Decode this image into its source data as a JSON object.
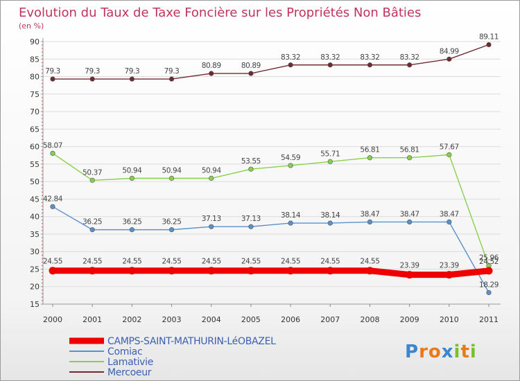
{
  "chart_data": {
    "type": "line",
    "title": "Evolution du Taux de Taxe Foncière sur les Propriétés Non Bâties",
    "unit_label": "(en %)",
    "x": [
      "2000",
      "2001",
      "2002",
      "2003",
      "2004",
      "2005",
      "2006",
      "2007",
      "2008",
      "2009",
      "2010",
      "2011"
    ],
    "ylim": [
      15,
      90
    ],
    "yticks": [
      15,
      20,
      25,
      30,
      35,
      40,
      45,
      50,
      55,
      60,
      65,
      70,
      75,
      80,
      85,
      90
    ],
    "grid": "horizontal",
    "series": [
      {
        "name": "Mercoeur",
        "color": "#6d2a30",
        "values": [
          79.3,
          79.3,
          79.3,
          79.3,
          80.89,
          80.89,
          83.32,
          83.32,
          83.32,
          83.32,
          84.99,
          89.11
        ],
        "labels": [
          "79.3",
          "79.3",
          "79.3",
          "79.3",
          "80.89",
          "80.89",
          "83.32",
          "83.32",
          "83.32",
          "83.32",
          "84.99",
          "89.11"
        ]
      },
      {
        "name": "Lamativie",
        "color": "#88d04b",
        "values": [
          58.07,
          50.37,
          50.94,
          50.94,
          50.94,
          53.55,
          54.59,
          55.71,
          56.81,
          56.81,
          57.67,
          25.96
        ],
        "labels": [
          "58.07",
          "50.37",
          "50.94",
          "50.94",
          "50.94",
          "53.55",
          "54.59",
          "55.71",
          "56.81",
          "56.81",
          "57.67",
          "25.96"
        ]
      },
      {
        "name": "Comiac",
        "color": "#5b90c8",
        "values": [
          42.84,
          36.25,
          36.25,
          36.25,
          37.13,
          37.13,
          38.14,
          38.14,
          38.47,
          38.47,
          38.47,
          18.29
        ],
        "labels": [
          "42.84",
          "36.25",
          "36.25",
          "36.25",
          "37.13",
          "37.13",
          "38.14",
          "38.14",
          "38.47",
          "38.47",
          "38.47",
          "18.29"
        ]
      },
      {
        "name": "CAMPS-SAINT-MATHURIN-LéOBAZEL",
        "color": "#ee0000",
        "values": [
          24.55,
          24.55,
          24.55,
          24.55,
          24.55,
          24.55,
          24.55,
          24.55,
          24.55,
          23.39,
          23.39,
          24.52
        ],
        "labels": [
          "24.55",
          "24.55",
          "24.55",
          "24.55",
          "24.55",
          "24.55",
          "24.55",
          "24.55",
          "24.55",
          "23.39",
          "23.39",
          "24.52"
        ],
        "emphasis": true
      }
    ],
    "legend": {
      "placement": "bottom-left",
      "order": [
        "CAMPS-SAINT-MATHURIN-LéOBAZEL",
        "Comiac",
        "Lamativie",
        "Mercoeur"
      ]
    }
  },
  "branding": {
    "logo_letters": [
      "P",
      "r",
      "o",
      "x",
      "i",
      "t",
      "i"
    ],
    "logo_colors": [
      "#3a86cf",
      "#e97a1c",
      "#e97a1c",
      "#3a86cf",
      "#7bbf2e",
      "#e97a1c",
      "#7bbf2e"
    ]
  }
}
